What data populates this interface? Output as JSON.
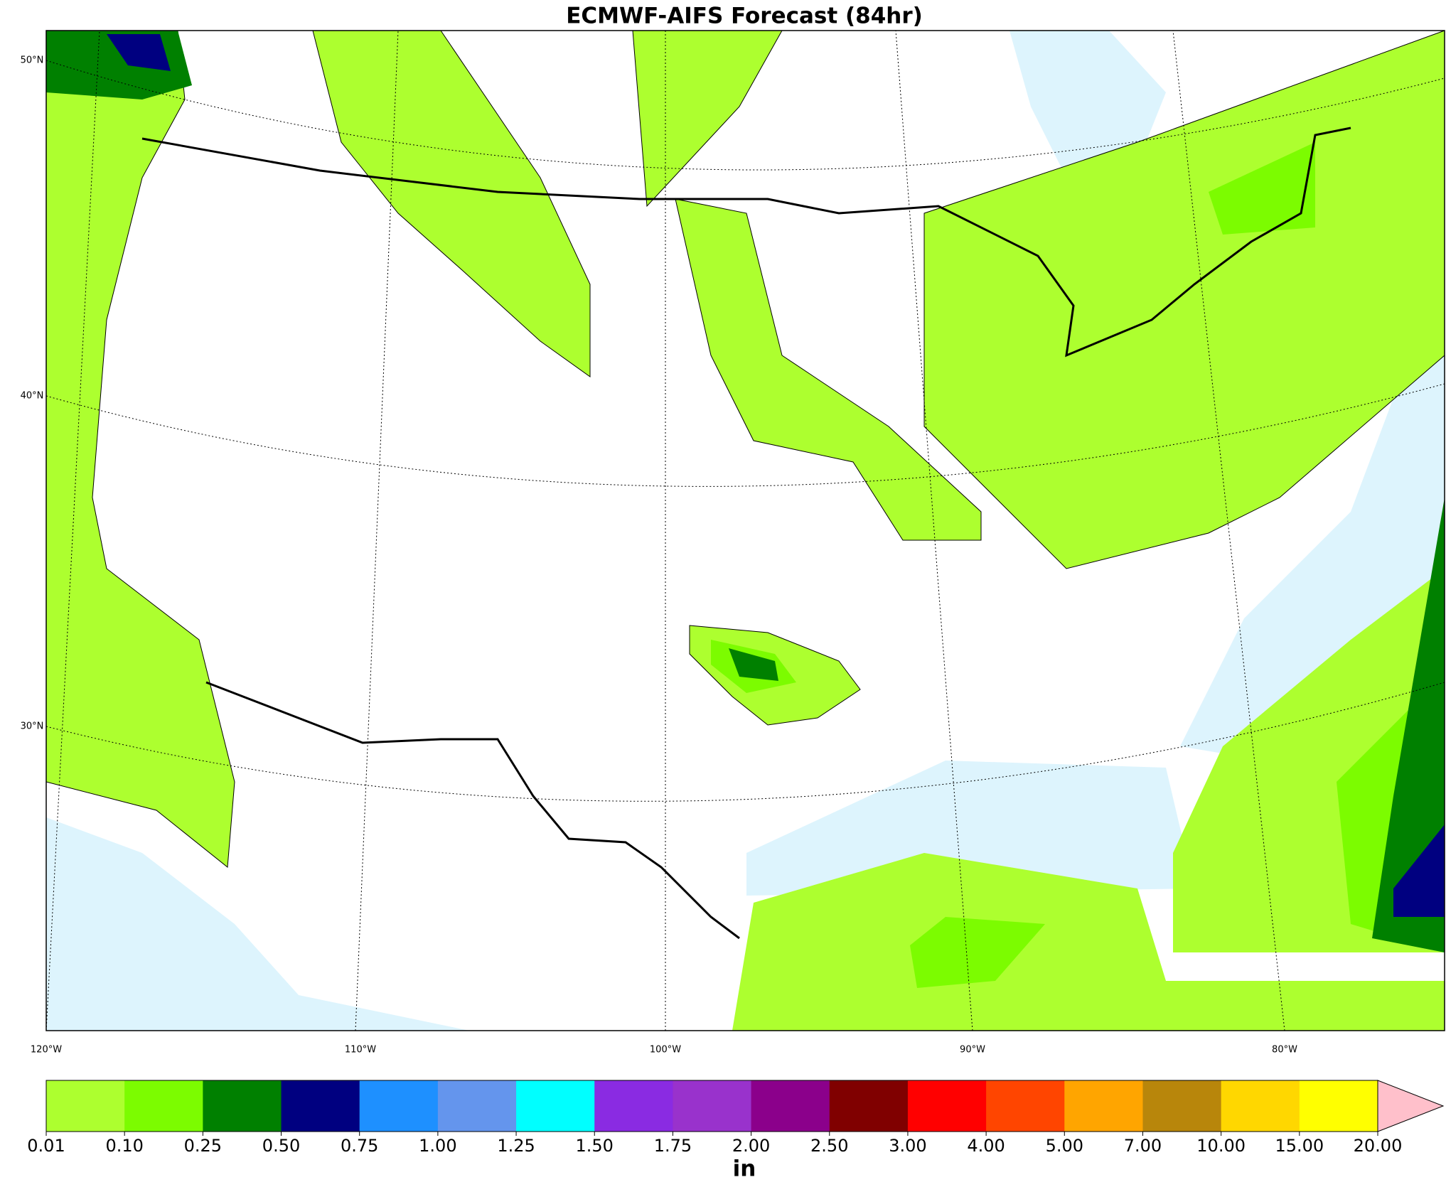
{
  "title": "ECMWF-AIFS Forecast (84hr)",
  "lat_labels": [
    "50°N",
    "40°N",
    "30°N"
  ],
  "lon_labels": [
    "120°W",
    "110°W",
    "100°W",
    "90°W",
    "80°W"
  ],
  "colorbar": {
    "levels": [
      {
        "value": 0.01,
        "label": "0.01"
      },
      {
        "value": 0.1,
        "label": "0.10"
      },
      {
        "value": 0.25,
        "label": "0.25"
      },
      {
        "value": 0.5,
        "label": "0.50"
      },
      {
        "value": 0.75,
        "label": "0.75"
      },
      {
        "value": 1,
        "label": "1.00"
      },
      {
        "value": 1.25,
        "label": "1.25"
      },
      {
        "value": 1.5,
        "label": "1.50"
      },
      {
        "value": 1.75,
        "label": "1.75"
      },
      {
        "value": 2,
        "label": "2.00"
      },
      {
        "value": 2.5,
        "label": "2.50"
      },
      {
        "value": 3,
        "label": "3.00"
      },
      {
        "value": 4,
        "label": "4.00"
      },
      {
        "value": 5,
        "label": "5.00"
      },
      {
        "value": 7,
        "label": "7.00"
      },
      {
        "value": 10,
        "label": "10.00"
      },
      {
        "value": 15,
        "label": "15.00"
      },
      {
        "value": 20,
        "label": "20.00"
      }
    ],
    "colors": [
      "#adff2f",
      "#7cfc00",
      "#008000",
      "#000080",
      "#1e90ff",
      "#6495ed",
      "#00ffff",
      "#8a2be2",
      "#9932cc",
      "#8b008b",
      "#800000",
      "#ff0000",
      "#ff4500",
      "#ffa500",
      "#b8860b",
      "#ffd700",
      "#ffff00"
    ],
    "extend_color": "#ffc0cb",
    "unit": "in"
  }
}
